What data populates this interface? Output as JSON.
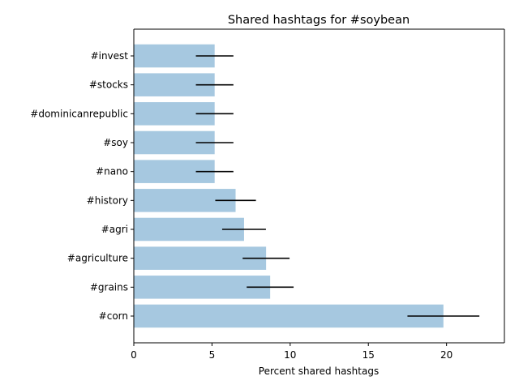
{
  "chart_data": {
    "type": "bar",
    "orientation": "horizontal",
    "title": "Shared hashtags for #soybean",
    "xlabel": "Percent shared hashtags",
    "ylabel": "",
    "xlim": [
      0,
      23.7
    ],
    "xticks": [
      0,
      5,
      10,
      15,
      20
    ],
    "grid": false,
    "bar_color": "#a6c8e0",
    "errorbar_color": "#000000",
    "categories": [
      "#invest",
      "#stocks",
      "#dominicanrepublic",
      "#soy",
      "#nano",
      "#history",
      "#agri",
      "#agriculture",
      "#grains",
      "#corn"
    ],
    "values": [
      5.17,
      5.17,
      5.17,
      5.17,
      5.17,
      6.51,
      7.05,
      8.46,
      8.72,
      19.8
    ],
    "errors": [
      1.2,
      1.2,
      1.2,
      1.2,
      1.2,
      1.3,
      1.4,
      1.5,
      1.5,
      2.3
    ]
  }
}
